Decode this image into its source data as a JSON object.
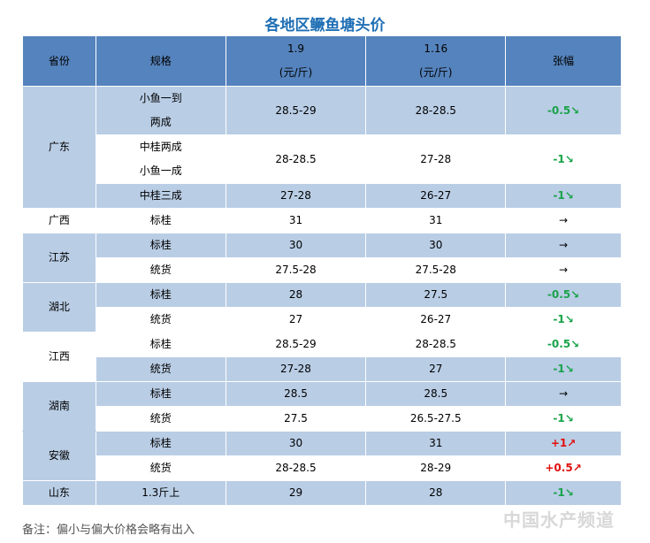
{
  "title": "各地区鳜鱼塘头价",
  "table": {
    "header": [
      "省份",
      "规格",
      "1.9",
      "1.16",
      "张幅"
    ],
    "unit": "(元/斤)",
    "groups": [
      {
        "province": "广东",
        "rows": [
          {
            "spec": [
              "小鱼一到",
              "两成"
            ],
            "p1": "28.5-29",
            "p2": "28-28.5",
            "change": "-0.5↘"
          },
          {
            "spec": [
              "中桂两成",
              "小鱼一成"
            ],
            "p1": "28-28.5",
            "p2": "27-28",
            "change": "-1↘"
          },
          {
            "spec": [
              "中桂三成"
            ],
            "p1": "27-28",
            "p2": "26-27",
            "change": "-1↘"
          }
        ]
      },
      {
        "province": "广西",
        "rows": [
          {
            "spec": [
              "标桂"
            ],
            "p1": "31",
            "p2": "31",
            "change": "→"
          }
        ]
      },
      {
        "province": "江苏",
        "rows": [
          {
            "spec": [
              "标桂"
            ],
            "p1": "30",
            "p2": "30",
            "change": "→"
          },
          {
            "spec": [
              "统货"
            ],
            "p1": "27.5-28",
            "p2": "27.5-28",
            "change": "→"
          }
        ]
      },
      {
        "province": "湖北",
        "rows": [
          {
            "spec": [
              "标桂"
            ],
            "p1": "28",
            "p2": "27.5",
            "change": "-0.5↘"
          },
          {
            "spec": [
              "统货"
            ],
            "p1": "27",
            "p2": "26-27",
            "change": "-1↘"
          }
        ]
      },
      {
        "province": "江西",
        "rows": [
          {
            "spec": [
              "标桂"
            ],
            "p1": "28.5-29",
            "p2": "28-28.5",
            "change": "-0.5↘"
          },
          {
            "spec": [
              "统货"
            ],
            "p1": "27-28",
            "p2": "27",
            "change": "-1↘"
          }
        ]
      },
      {
        "province": "湖南",
        "rows": [
          {
            "spec": [
              "标桂"
            ],
            "p1": "28.5",
            "p2": "28.5",
            "change": "→"
          },
          {
            "spec": [
              "统货"
            ],
            "p1": "27.5",
            "p2": "26.5-27.5",
            "change": "-1↘"
          }
        ]
      },
      {
        "province": "安徽",
        "rows": [
          {
            "spec": [
              "标桂"
            ],
            "p1": "30",
            "p2": "31",
            "change": "+1↗"
          },
          {
            "spec": [
              "统货"
            ],
            "p1": "28-28.5",
            "p2": "28-29",
            "change": "+0.5↗"
          }
        ]
      },
      {
        "province": "山东",
        "rows": [
          {
            "spec": [
              "1.3斤上"
            ],
            "p1": "29",
            "p2": "28",
            "change": "-1↘"
          }
        ]
      }
    ]
  },
  "note": "备注：偏小与偏大价格会略有出入",
  "watermark": "中国水产频道"
}
